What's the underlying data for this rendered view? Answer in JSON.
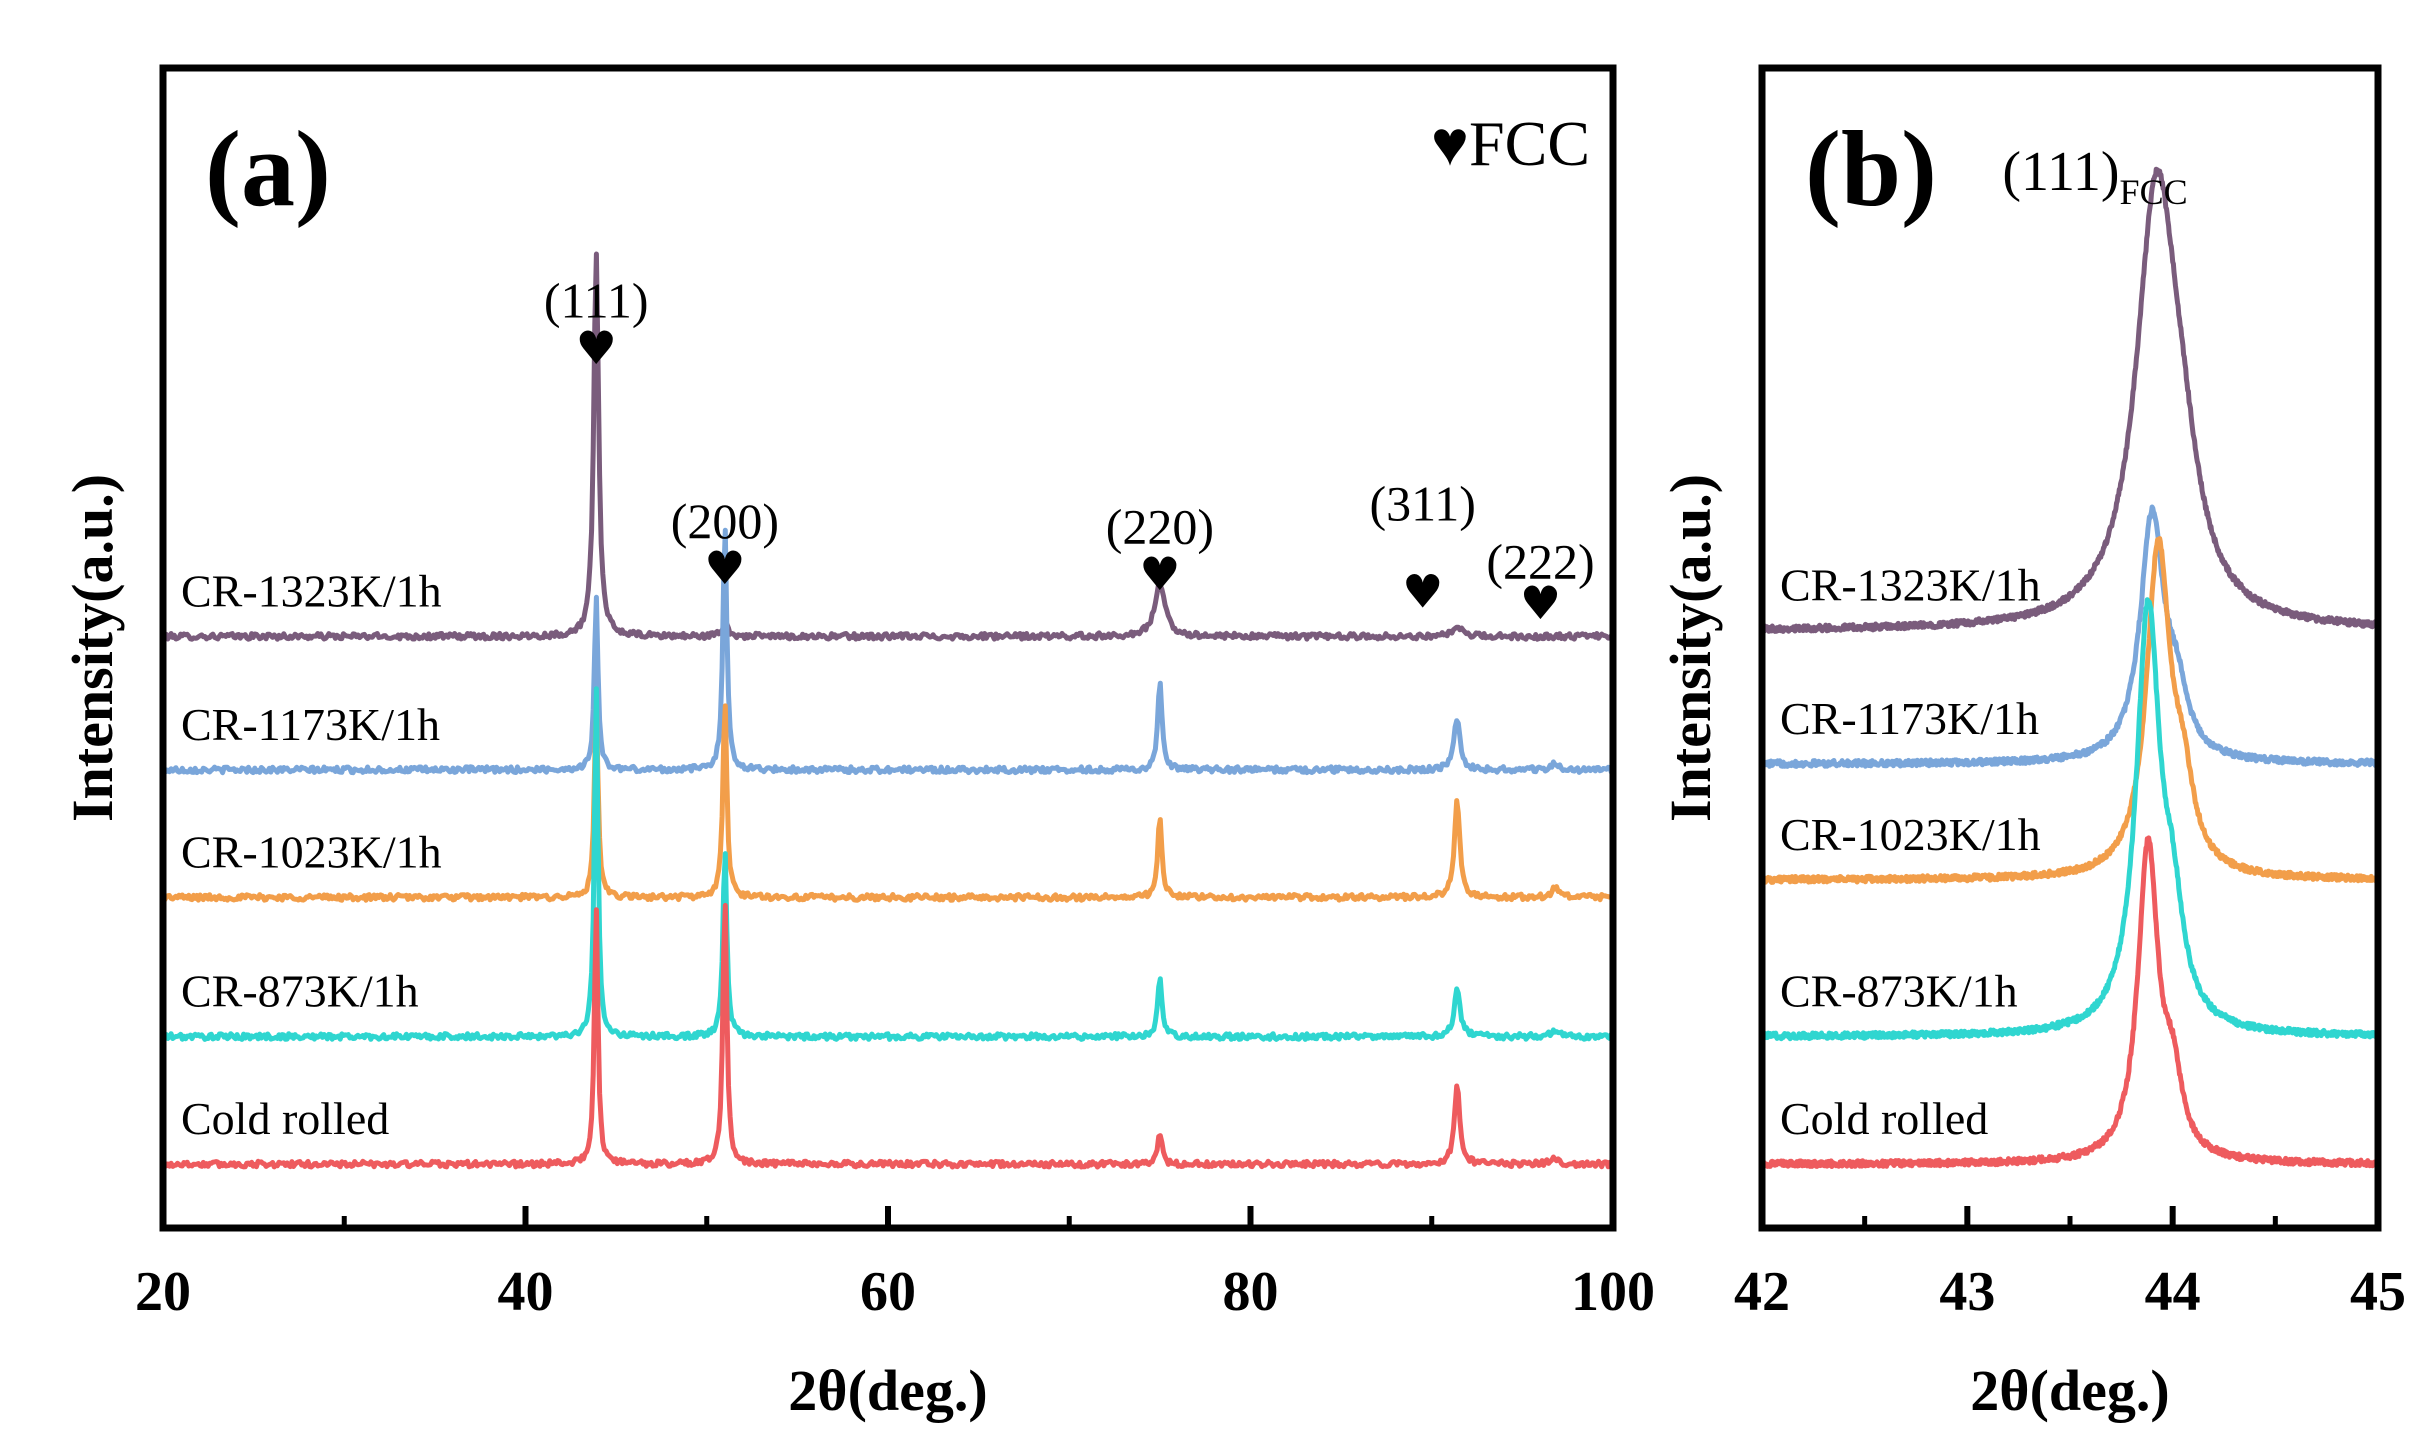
{
  "chart_data": [
    {
      "type": "line",
      "panel_label": "(a)",
      "xlabel": "2θ(deg.)",
      "ylabel": "Intensity(a.u.)",
      "xlim": [
        20,
        100
      ],
      "x_ticks": [
        "20",
        "40",
        "60",
        "80",
        "100"
      ],
      "legend_text": "♥FCC",
      "marker_symbol": "♥",
      "peaks": [
        {
          "label": "(111)",
          "x": 43.9,
          "label_y": 0.785,
          "marker_y": 0.745
        },
        {
          "label": "(200)",
          "x": 51.0,
          "label_y": 0.595,
          "marker_y": 0.555
        },
        {
          "label": "(220)",
          "x": 75.0,
          "label_y": 0.59,
          "marker_y": 0.55
        },
        {
          "label": "(311)",
          "x": 89.5,
          "label_y": 0.61,
          "marker_y": 0.535
        },
        {
          "label": "(222)",
          "x": 96.0,
          "label_y": 0.56,
          "marker_y": 0.525
        }
      ],
      "series": [
        {
          "name": "CR-1323K/1h",
          "color": "#7a5c7c",
          "baseline": 0.51,
          "peaks": [
            [
              43.9,
              0.33,
              0.16
            ],
            [
              51.0,
              0.012,
              0.18
            ],
            [
              75.0,
              0.045,
              0.35
            ],
            [
              91.4,
              0.007,
              0.35
            ]
          ]
        },
        {
          "name": "CR-1173K/1h",
          "color": "#7aa6da",
          "baseline": 0.395,
          "peaks": [
            [
              43.9,
              0.15,
              0.12
            ],
            [
              51.0,
              0.21,
              0.13
            ],
            [
              75.0,
              0.075,
              0.14
            ],
            [
              91.4,
              0.045,
              0.2
            ],
            [
              96.8,
              0.005,
              0.25
            ]
          ]
        },
        {
          "name": "CR-1023K/1h",
          "color": "#f29e4a",
          "baseline": 0.285,
          "peaks": [
            [
              43.9,
              0.17,
              0.12
            ],
            [
              51.0,
              0.17,
              0.13
            ],
            [
              75.0,
              0.07,
              0.14
            ],
            [
              91.4,
              0.085,
              0.18
            ],
            [
              96.8,
              0.008,
              0.25
            ]
          ]
        },
        {
          "name": "CR-873K/1h",
          "color": "#2fd6d0",
          "baseline": 0.165,
          "peaks": [
            [
              43.9,
              0.3,
              0.12
            ],
            [
              51.0,
              0.16,
              0.13
            ],
            [
              75.0,
              0.05,
              0.14
            ],
            [
              91.4,
              0.04,
              0.2
            ],
            [
              96.8,
              0.005,
              0.25
            ]
          ]
        },
        {
          "name": "Cold rolled",
          "color": "#ee5b5e",
          "baseline": 0.055,
          "peaks": [
            [
              43.9,
              0.22,
              0.12
            ],
            [
              51.0,
              0.23,
              0.13
            ],
            [
              75.0,
              0.027,
              0.14
            ],
            [
              91.4,
              0.07,
              0.18
            ],
            [
              96.8,
              0.006,
              0.25
            ]
          ]
        }
      ]
    },
    {
      "type": "line",
      "panel_label": "(b)",
      "xlabel": "2θ(deg.)",
      "ylabel": "Intensity(a.u.)",
      "xlim": [
        42,
        45
      ],
      "x_ticks": [
        "42",
        "43",
        "44",
        "45"
      ],
      "peak_label": "(111)",
      "peak_label_sub": "FCC",
      "series": [
        {
          "name": "CR-1323K/1h",
          "color": "#7a5c7c",
          "baseline": 0.515,
          "center": 43.92,
          "amplitude": 0.36,
          "width": 0.12
        },
        {
          "name": "CR-1173K/1h",
          "color": "#7aa6da",
          "baseline": 0.4,
          "center": 43.9,
          "amplitude": 0.21,
          "width": 0.07
        },
        {
          "name": "CR-1023K/1h",
          "color": "#f29e4a",
          "baseline": 0.3,
          "center": 43.93,
          "amplitude": 0.28,
          "width": 0.07
        },
        {
          "name": "CR-873K/1h",
          "color": "#2fd6d0",
          "baseline": 0.165,
          "center": 43.88,
          "amplitude": 0.36,
          "width": 0.07
        },
        {
          "name": "Cold rolled",
          "color": "#ee5b5e",
          "baseline": 0.055,
          "center": 43.88,
          "amplitude": 0.27,
          "width": 0.06
        }
      ]
    }
  ]
}
